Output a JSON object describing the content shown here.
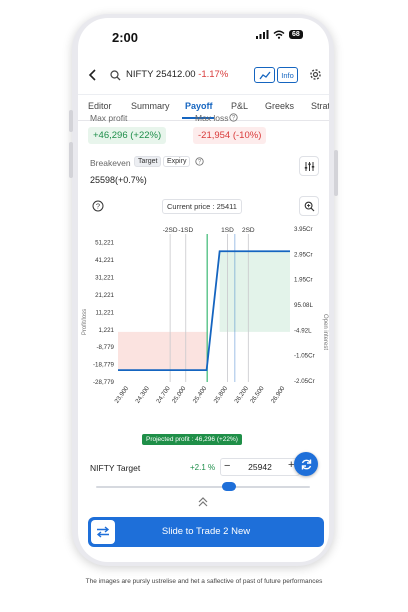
{
  "status": {
    "time": "2:00",
    "battery": "68"
  },
  "header": {
    "symbol_text": "NIFTY 25412.00",
    "change": "-1.17%",
    "info_label": "Info"
  },
  "tabs": [
    {
      "label": "Editor"
    },
    {
      "label": "Summary"
    },
    {
      "label": "Payoff",
      "active": true
    },
    {
      "label": "P&L"
    },
    {
      "label": "Greeks"
    },
    {
      "label": "Strat"
    }
  ],
  "stats": {
    "max_profit_label": "Max profit",
    "max_profit_value": "+46,296 (+22%)",
    "max_loss_label": "Max loss",
    "max_loss_value": "-21,954 (-10%)",
    "breakeven_label": "Breakeven",
    "breakeven_toggle": [
      "Target",
      "Expiry"
    ],
    "breakeven_value": "25598(+0.7%)"
  },
  "current_price_label": "Current price : 25411",
  "chart_data": {
    "type": "line",
    "x_tick_labels": [
      "23,900",
      "24,300",
      "24,700",
      "25,000",
      "25,400",
      "25,800",
      "26,200",
      "26,500",
      "26,900"
    ],
    "y_left_tick_labels": [
      "51,221",
      "41,221",
      "31,221",
      "21,221",
      "11,221",
      "1,221",
      "-8,779",
      "-18,779",
      "-28,779"
    ],
    "y_right_tick_labels": [
      "3.95Cr",
      "2.95Cr",
      "1.95Cr",
      "95.08L",
      "-4.92L",
      "-1.05Cr",
      "-2.05Cr"
    ],
    "ylabel_left": "Profit/loss",
    "ylabel_right": "Open interest",
    "sd_markers": [
      "-2SD",
      "-1SD",
      "1SD",
      "2SD"
    ],
    "series": [
      {
        "x": [
          23700,
          25400,
          25650,
          27000
        ],
        "y": [
          -21954,
          -21954,
          46296,
          46296
        ]
      }
    ],
    "xlim": [
      23700,
      27000
    ],
    "ylim": [
      -28779,
      56221
    ],
    "sd_values": [
      24700,
      25000,
      25800,
      26200
    ],
    "current_price": 25411,
    "target": 25942,
    "colors": {
      "line": "#1565c0",
      "profit": "#e3f3ea",
      "loss": "#fbe3e0",
      "current": "#3ab873",
      "target": "#1565c0"
    }
  },
  "projected_profit": "Projected profit : 46,296 (+22%)",
  "target": {
    "label": "NIFTY Target",
    "change": "+2.1 %",
    "value": "25942",
    "minus": "−",
    "plus": "+",
    "slider_fraction": 0.62
  },
  "trade_button": "Slide to Trade 2 New",
  "disclaimer": "The images are pursly ustrelise and het a saflective of past of future performances"
}
